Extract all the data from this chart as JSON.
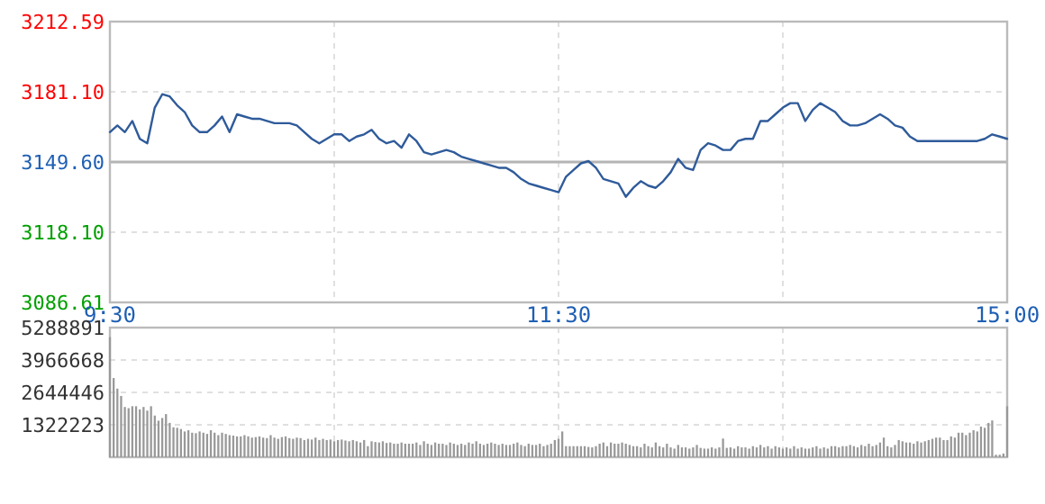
{
  "chart_data": [
    {
      "type": "line",
      "categories": [
        "9:30",
        null,
        null,
        null,
        null,
        null,
        null,
        null,
        null,
        null,
        null,
        null,
        null,
        null,
        null,
        null,
        null,
        null,
        null,
        null,
        null,
        null,
        null,
        null,
        null,
        null,
        null,
        null,
        null,
        null,
        null,
        null,
        null,
        null,
        null,
        null,
        null,
        null,
        null,
        null,
        null,
        null,
        null,
        null,
        null,
        null,
        null,
        null,
        null,
        null,
        null,
        null,
        null,
        null,
        null,
        null,
        null,
        null,
        null,
        null,
        "11:30",
        null,
        null,
        null,
        null,
        null,
        null,
        null,
        null,
        null,
        null,
        null,
        null,
        null,
        null,
        null,
        null,
        null,
        null,
        null,
        null,
        null,
        null,
        null,
        null,
        null,
        null,
        null,
        null,
        null,
        null,
        null,
        null,
        null,
        null,
        null,
        null,
        null,
        null,
        null,
        null,
        null,
        null,
        null,
        null,
        null,
        null,
        null,
        null,
        null,
        null,
        null,
        null,
        null,
        null,
        null,
        null,
        null,
        null,
        null,
        "15:00"
      ],
      "series": [
        {
          "color": "#2f5b9a",
          "values": [
            3163,
            3166,
            3163,
            3168,
            3160,
            3158,
            3174,
            3180,
            3179,
            3175,
            3172,
            3166,
            3163,
            3163,
            3166,
            3170,
            3163,
            3171,
            3170,
            3169,
            3169,
            3168,
            3167,
            3167,
            3167,
            3166,
            3163,
            3160,
            3158,
            3160,
            3162,
            3162,
            3159,
            3161,
            3162,
            3164,
            3160,
            3158,
            3159,
            3156,
            3162,
            3159,
            3154,
            3153,
            3154,
            3155,
            3154,
            3152,
            3151,
            3150,
            3149,
            3148,
            3147,
            3147,
            3145,
            3142,
            3140,
            3139,
            3138,
            3137,
            3136,
            3143,
            3146,
            3149,
            3150,
            3147,
            3142,
            3141,
            3140,
            3134,
            3138,
            3141,
            3139,
            3138,
            3141,
            3145,
            3151,
            3147,
            3146,
            3155,
            3158,
            3157,
            3155,
            3155,
            3159,
            3160,
            3160,
            3168,
            3168,
            3171,
            3174,
            3176,
            3176,
            3168,
            3173,
            3176,
            3174,
            3172,
            3168,
            3166,
            3166,
            3167,
            3169,
            3171,
            3169,
            3166,
            3165,
            3161,
            3159,
            3159,
            3159,
            3159,
            3159,
            3159,
            3159,
            3159,
            3159,
            3160,
            3162,
            3161,
            3160
          ]
        }
      ],
      "ylim": [
        3086.61,
        3212.59
      ],
      "yticks": [
        {
          "value": 3086.61,
          "label": "3086.61"
        },
        {
          "value": 3118.1,
          "label": "3118.10"
        },
        {
          "value": 3149.6,
          "label": "3149.60"
        },
        {
          "value": 3181.1,
          "label": "3181.10"
        },
        {
          "value": 3212.59,
          "label": "3212.59"
        }
      ],
      "ref_lines": [
        {
          "axis": "y",
          "value": 3149.6,
          "color": "#b4b4b4"
        }
      ],
      "grid": true,
      "marker": "none"
    },
    {
      "type": "bar",
      "categories": [
        null,
        null,
        null,
        null,
        null,
        null,
        null,
        null,
        null,
        null,
        null,
        null,
        null,
        null,
        null,
        null,
        null,
        null,
        null,
        null,
        null,
        null,
        null,
        null,
        null,
        null,
        null,
        null,
        null,
        null,
        null,
        null,
        null,
        null,
        null,
        null,
        null,
        null,
        null,
        null,
        null,
        null,
        null,
        null,
        null,
        null,
        null,
        null,
        null,
        null,
        null,
        null,
        null,
        null,
        null,
        null,
        null,
        null,
        null,
        null,
        null,
        null,
        null,
        null,
        null,
        null,
        null,
        null,
        null,
        null,
        null,
        null,
        null,
        null,
        null,
        null,
        null,
        null,
        null,
        null,
        null,
        null,
        null,
        null,
        null,
        null,
        null,
        null,
        null,
        null,
        null,
        null,
        null,
        null,
        null,
        null,
        null,
        null,
        null,
        null,
        null,
        null,
        null,
        null,
        null,
        null,
        null,
        null,
        null,
        null,
        null,
        null,
        null,
        null,
        null,
        null,
        null,
        null,
        null,
        null,
        null,
        null,
        null,
        null,
        null,
        null,
        null,
        null,
        null,
        null,
        null,
        null,
        null,
        null,
        null,
        null,
        null,
        null,
        null,
        null,
        null,
        null,
        null,
        null,
        null,
        null,
        null,
        null,
        null,
        null,
        null,
        null,
        null,
        null,
        null,
        null,
        null,
        null,
        null,
        null,
        null,
        null,
        null,
        null,
        null,
        null,
        null,
        null,
        null,
        null,
        null,
        null,
        null,
        null,
        null,
        null,
        null,
        null,
        null,
        null,
        null,
        null,
        null,
        null,
        null,
        null,
        null,
        null,
        null,
        null,
        null,
        null,
        null,
        null,
        null,
        null,
        null,
        null,
        null,
        null,
        null,
        null,
        null,
        null,
        null,
        null,
        null,
        null,
        null,
        null,
        null,
        null,
        null,
        null,
        null,
        null,
        null,
        null,
        null,
        null,
        null,
        null,
        null,
        null,
        null,
        null,
        null,
        null,
        null,
        null,
        null,
        null,
        null,
        null,
        null,
        null,
        null,
        null,
        null,
        null,
        null
      ],
      "values": [
        4900000,
        3230000,
        2800000,
        2500000,
        2050000,
        2000000,
        2080000,
        2080000,
        1950000,
        2050000,
        1900000,
        2080000,
        1700000,
        1490000,
        1600000,
        1760000,
        1400000,
        1220000,
        1200000,
        1150000,
        1050000,
        1100000,
        1000000,
        980000,
        1050000,
        1000000,
        950000,
        1100000,
        1000000,
        900000,
        1000000,
        950000,
        900000,
        880000,
        850000,
        850000,
        900000,
        850000,
        800000,
        820000,
        850000,
        800000,
        780000,
        900000,
        800000,
        750000,
        820000,
        850000,
        780000,
        750000,
        800000,
        780000,
        700000,
        750000,
        720000,
        800000,
        700000,
        750000,
        700000,
        720000,
        650000,
        700000,
        720000,
        680000,
        650000,
        700000,
        650000,
        600000,
        700000,
        450000,
        650000,
        620000,
        600000,
        650000,
        580000,
        600000,
        550000,
        550000,
        600000,
        550000,
        550000,
        550000,
        600000,
        500000,
        650000,
        550000,
        500000,
        600000,
        550000,
        550000,
        500000,
        600000,
        550000,
        500000,
        550000,
        500000,
        600000,
        550000,
        650000,
        550000,
        500000,
        550000,
        600000,
        550000,
        500000,
        550000,
        500000,
        500000,
        550000,
        600000,
        500000,
        450000,
        550000,
        500000,
        500000,
        550000,
        450000,
        500000,
        550000,
        700000,
        750000,
        1050000,
        450000,
        450000,
        450000,
        450000,
        450000,
        450000,
        420000,
        400000,
        450000,
        550000,
        600000,
        450000,
        600000,
        550000,
        550000,
        600000,
        550000,
        500000,
        450000,
        450000,
        400000,
        550000,
        450000,
        400000,
        600000,
        450000,
        400000,
        550000,
        400000,
        350000,
        500000,
        400000,
        400000,
        350000,
        400000,
        500000,
        380000,
        350000,
        350000,
        400000,
        350000,
        400000,
        760000,
        380000,
        400000,
        350000,
        450000,
        400000,
        400000,
        350000,
        450000,
        400000,
        500000,
        400000,
        450000,
        350000,
        450000,
        400000,
        350000,
        400000,
        350000,
        450000,
        350000,
        400000,
        350000,
        350000,
        400000,
        450000,
        350000,
        400000,
        350000,
        450000,
        450000,
        400000,
        450000,
        450000,
        500000,
        450000,
        400000,
        500000,
        450000,
        550000,
        450000,
        500000,
        600000,
        800000,
        450000,
        400000,
        500000,
        700000,
        650000,
        600000,
        600000,
        550000,
        650000,
        600000,
        650000,
        700000,
        750000,
        800000,
        800000,
        700000,
        700000,
        850000,
        800000,
        1000000,
        1000000,
        900000,
        1000000,
        1100000,
        1050000,
        1250000,
        1200000,
        1400000,
        1500000,
        100000,
        100000,
        150000,
        2080000
      ],
      "color": "#999999",
      "ylim": [
        0,
        5288891
      ],
      "yticks": [
        1322223,
        2644446,
        3966668,
        5288891
      ],
      "grid": true,
      "tick_labels": "y"
    }
  ]
}
